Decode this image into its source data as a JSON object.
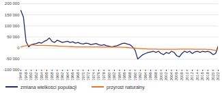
{
  "chart_data": {
    "type": "line",
    "x": [
      1946,
      1947,
      1948,
      1949,
      1950,
      1951,
      1952,
      1953,
      1954,
      1955,
      1956,
      1957,
      1958,
      1959,
      1960,
      1961,
      1962,
      1963,
      1964,
      1965,
      1966,
      1967,
      1968,
      1969,
      1970,
      1971,
      1972,
      1973,
      1974,
      1975,
      1976,
      1977,
      1978,
      1979,
      1980,
      1981,
      1982,
      1983,
      1984,
      1985,
      1986,
      1987,
      1988,
      1989,
      1990,
      1991,
      1992,
      1993,
      1994,
      1995,
      1996,
      1997,
      1998,
      1999,
      2000,
      2001,
      2002,
      2003,
      2004,
      2005,
      2006,
      2007,
      2008,
      2009,
      2010,
      2011,
      2012,
      2013,
      2014,
      2015,
      2016,
      2017,
      2018,
      2019,
      2020,
      2021,
      2022
    ],
    "series": [
      {
        "name": "zmiana wielkości populacji",
        "color": "#1f2d6b",
        "values": [
          170000,
          140000,
          30000,
          5000,
          15000,
          18000,
          20000,
          25000,
          22000,
          30000,
          35000,
          45000,
          30000,
          25000,
          35000,
          30000,
          25000,
          28000,
          30000,
          25000,
          28000,
          22000,
          25000,
          20000,
          18000,
          22000,
          20000,
          15000,
          18000,
          20000,
          15000,
          12000,
          15000,
          10000,
          8000,
          5000,
          8000,
          10000,
          15000,
          20000,
          22000,
          18000,
          15000,
          5000,
          -10000,
          -50000,
          -40000,
          -30000,
          -25000,
          -20000,
          -18000,
          -15000,
          -20000,
          -15000,
          -25000,
          -30000,
          -20000,
          -25000,
          -15000,
          -20000,
          -35000,
          -40000,
          -25000,
          -15000,
          -20000,
          -15000,
          -25000,
          -18000,
          -15000,
          -20000,
          -15000,
          -18000,
          -15000,
          -20000,
          -30000,
          -25000,
          10000
        ]
      },
      {
        "name": "przyrost naturalny",
        "color": "#e8742a",
        "values": [
          5000,
          8000,
          10000,
          12000,
          13000,
          13000,
          12000,
          12000,
          12000,
          12000,
          11000,
          11000,
          10000,
          10000,
          9000,
          8000,
          8000,
          7000,
          7000,
          6000,
          6000,
          5000,
          5000,
          5000,
          5000,
          5000,
          5000,
          5000,
          5000,
          5000,
          5000,
          4000,
          4000,
          4000,
          4000,
          4000,
          4000,
          4000,
          4000,
          3000,
          3000,
          2000,
          1000,
          0,
          -1000,
          -2000,
          -3000,
          -4000,
          -4000,
          -5000,
          -5000,
          -5000,
          -5000,
          -6000,
          -6000,
          -6000,
          -6000,
          -6000,
          -6000,
          -6000,
          -6000,
          -5000,
          -5000,
          -5000,
          -5000,
          -5000,
          -5000,
          -6000,
          -6000,
          -6000,
          -6000,
          -6000,
          -7000,
          -7000,
          -9000,
          -11000,
          -8000
        ]
      }
    ],
    "xlim": [
      1946,
      2022
    ],
    "xticks": [
      1946,
      1948,
      1950,
      1952,
      1954,
      1956,
      1958,
      1960,
      1962,
      1964,
      1966,
      1968,
      1970,
      1972,
      1974,
      1976,
      1978,
      1980,
      1982,
      1984,
      1986,
      1988,
      1990,
      1992,
      1994,
      1996,
      1998,
      2000,
      2002,
      2004,
      2006,
      2008,
      2010,
      2012,
      2014,
      2016,
      2018,
      2020,
      2022
    ],
    "ylim": [
      -100000,
      200000
    ],
    "yticks": [
      {
        "value": -100000,
        "label": "-100 000"
      },
      {
        "value": -50000,
        "label": "-50 000"
      },
      0,
      {
        "value": 50000,
        "label": "50 000"
      },
      {
        "value": 100000,
        "label": "100 000"
      },
      {
        "value": 150000,
        "label": "150 000"
      },
      {
        "value": 200000,
        "label": "200 000"
      }
    ],
    "grid": true,
    "legend": "bottom"
  }
}
